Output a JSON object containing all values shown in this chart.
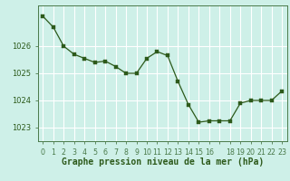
{
  "x": [
    0,
    1,
    2,
    3,
    4,
    5,
    6,
    7,
    8,
    9,
    10,
    11,
    12,
    13,
    14,
    15,
    16,
    17,
    18,
    19,
    20,
    21,
    22,
    23
  ],
  "y": [
    1027.1,
    1026.7,
    1026.0,
    1025.7,
    1025.55,
    1025.4,
    1025.45,
    1025.25,
    1025.0,
    1025.0,
    1025.55,
    1025.8,
    1025.65,
    1024.7,
    1023.85,
    1023.2,
    1023.25,
    1023.25,
    1023.25,
    1023.9,
    1024.0,
    1024.0,
    1024.0,
    1024.35
  ],
  "ylim": [
    1022.5,
    1027.5
  ],
  "yticks": [
    1023,
    1024,
    1025,
    1026
  ],
  "xlabel": "Graphe pression niveau de la mer (hPa)",
  "line_color": "#2d5a1b",
  "marker_color": "#2d5a1b",
  "bg_color": "#cef0e8",
  "grid_color": "#ffffff",
  "border_color": "#4a7a4a",
  "xlabel_color": "#2d5a1b",
  "tick_color": "#2d5a1b",
  "font_size_label": 7.0,
  "font_size_tick": 6.0,
  "tick_labels": [
    "0",
    "1",
    "2",
    "3",
    "4",
    "5",
    "6",
    "7",
    "8",
    "9",
    "10",
    "11",
    "12",
    "13",
    "14",
    "15",
    "16",
    "",
    "18",
    "19",
    "20",
    "21",
    "22",
    "23"
  ]
}
